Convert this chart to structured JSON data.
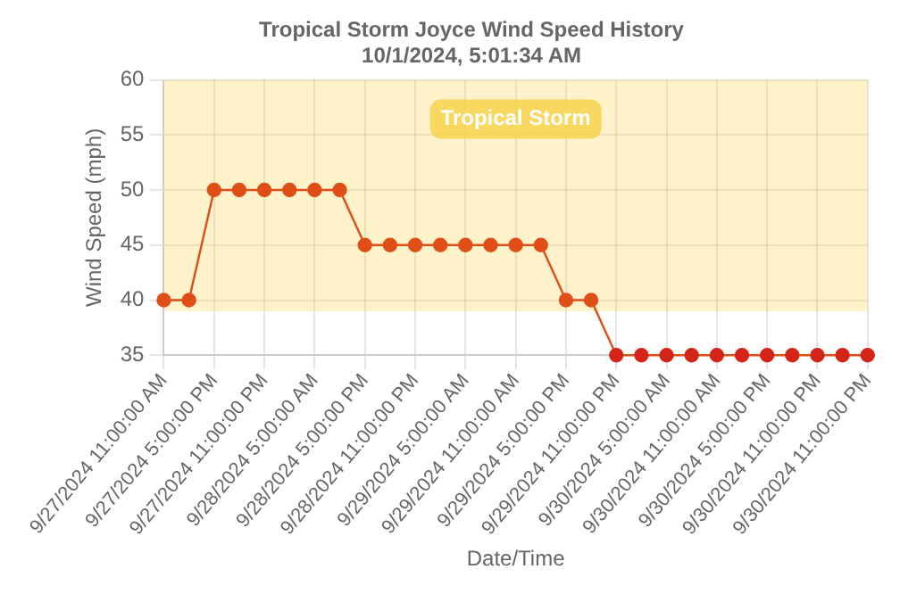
{
  "chart_data": {
    "type": "line",
    "title": "Tropical Storm Joyce Wind Speed History",
    "subtitle": "10/1/2024, 5:01:34 AM",
    "xlabel": "Date/Time",
    "ylabel": "Wind Speed (mph)",
    "categories": [
      "9/27/2024 11:00:00 AM",
      null,
      "9/27/2024 5:00:00 PM",
      null,
      "9/27/2024 11:00:00 PM",
      null,
      "9/28/2024 5:00:00 AM",
      null,
      "9/28/2024 5:00:00 PM",
      null,
      "9/28/2024 11:00:00 PM",
      null,
      "9/29/2024 5:00:00 AM",
      null,
      "9/29/2024 11:00:00 AM",
      null,
      "9/29/2024 5:00:00 PM",
      null,
      "9/29/2024 11:00:00 PM",
      null,
      "9/30/2024 5:00:00 AM",
      null,
      "9/30/2024 11:00:00 AM",
      null,
      "9/30/2024 5:00:00 PM",
      null,
      "9/30/2024 11:00:00 PM",
      null,
      "9/30/2024 11:00:00 PM"
    ],
    "series": [
      {
        "color": "#e04e18",
        "colors": [
          "#e04e18",
          "#e04e18",
          "#e04e18",
          "#e04e18",
          "#e04e18",
          "#e04e18",
          "#e04e18",
          "#e04e18",
          "#e04e18",
          "#e04e18",
          "#e04e18",
          "#e04e18",
          "#e04e18",
          "#e04e18",
          "#e04e18",
          "#e04e18",
          "#e04e18",
          "#e04e18",
          "#d42418",
          "#d42418",
          "#d42418",
          "#d42418",
          "#d42418",
          "#d42418",
          "#d42418",
          "#d42418",
          "#d42418",
          "#d42418",
          "#d42418"
        ],
        "values": [
          40,
          40,
          50,
          50,
          50,
          50,
          50,
          50,
          45,
          45,
          45,
          45,
          45,
          45,
          45,
          45,
          40,
          40,
          35,
          35,
          35,
          35,
          35,
          35,
          35,
          35,
          35,
          35,
          35
        ]
      }
    ],
    "ylim": [
      35,
      60
    ],
    "yticks": [
      35,
      40,
      45,
      50,
      55,
      60
    ],
    "grid": true,
    "legend": false,
    "marker": "circle",
    "line_style": "solid",
    "bands": [
      {
        "axis": "y",
        "from": 39,
        "to": 60,
        "label": "Tropical Storm",
        "color": "#f7d44c"
      }
    ]
  }
}
